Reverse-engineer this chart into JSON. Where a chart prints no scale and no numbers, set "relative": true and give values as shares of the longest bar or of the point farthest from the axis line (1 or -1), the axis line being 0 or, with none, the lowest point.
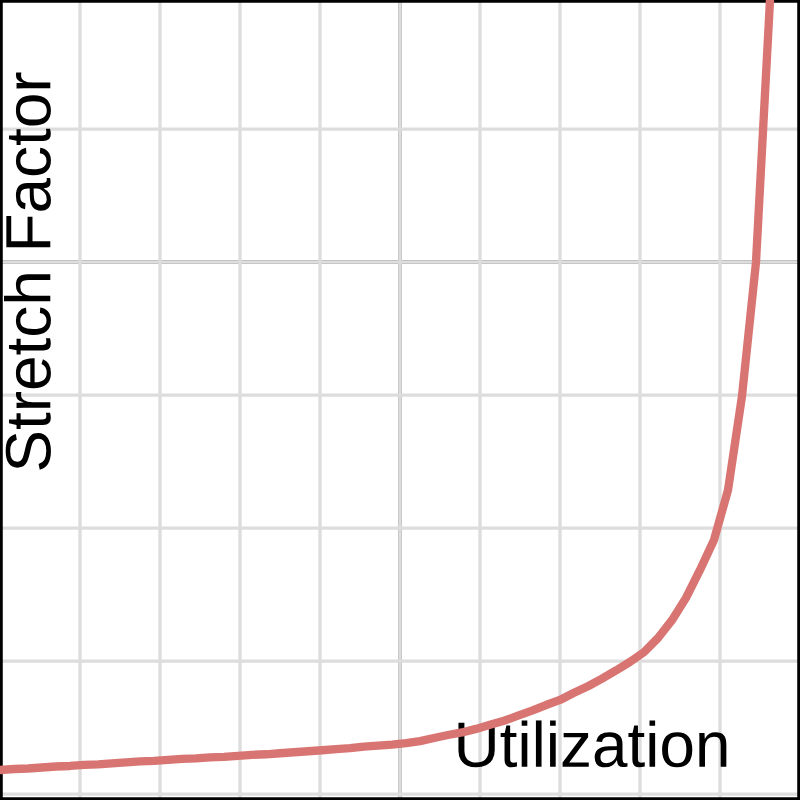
{
  "chart_data": {
    "type": "line",
    "relative": true,
    "xlabel": "Utilization",
    "ylabel": "Stretch Factor",
    "grid": true,
    "categories": [
      null,
      null,
      null,
      null,
      null,
      null,
      null,
      null,
      null,
      null,
      null,
      null,
      null,
      null,
      null,
      null,
      null,
      null,
      null,
      null,
      null,
      null,
      null,
      null,
      null,
      null,
      null,
      null,
      null,
      null,
      null,
      null,
      null,
      null,
      null,
      null,
      null,
      null,
      null,
      null,
      null,
      null,
      null,
      null,
      null,
      null,
      null,
      null,
      null,
      null,
      null,
      null,
      null,
      null,
      null,
      null
    ],
    "series": [
      {
        "color": "#d87572",
        "values": [
          -1.0,
          -0.998,
          -0.997,
          -0.995,
          -0.993,
          -0.992,
          -0.99,
          -0.989,
          -0.987,
          -0.985,
          -0.983,
          -0.982,
          -0.98,
          -0.978,
          -0.977,
          -0.975,
          -0.974,
          -0.972,
          -0.97,
          -0.969,
          -0.967,
          -0.965,
          -0.963,
          -0.961,
          -0.959,
          -0.957,
          -0.954,
          -0.952,
          -0.95,
          -0.947,
          -0.943,
          -0.937,
          -0.931,
          -0.926,
          -0.919,
          -0.911,
          -0.903,
          -0.893,
          -0.883,
          -0.872,
          -0.862,
          -0.848,
          -0.835,
          -0.82,
          -0.804,
          -0.787,
          -0.768,
          -0.74,
          -0.705,
          -0.661,
          -0.606,
          -0.547,
          -0.449,
          -0.264,
          0.0,
          0.516
        ]
      }
    ]
  }
}
